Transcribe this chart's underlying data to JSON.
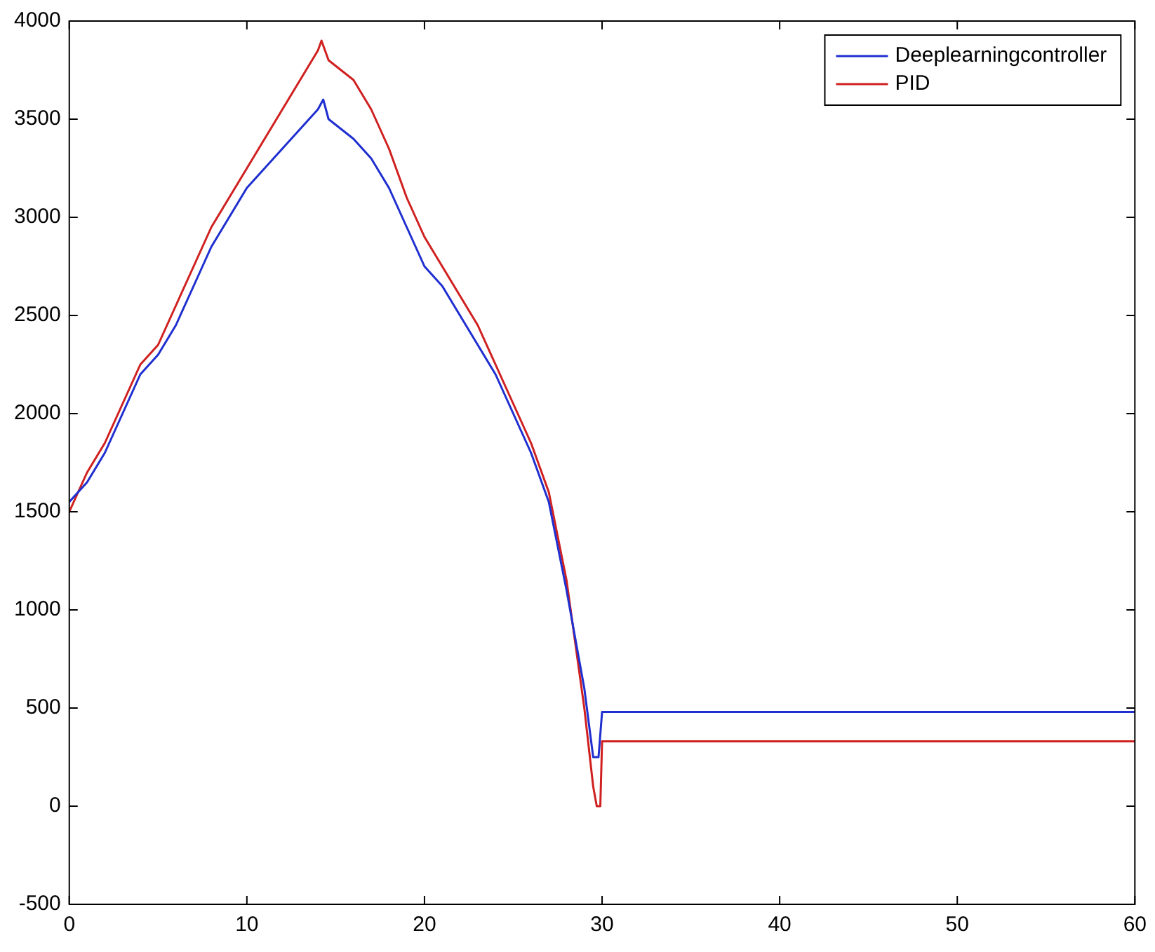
{
  "chart_data": {
    "type": "line",
    "xlim": [
      0,
      60
    ],
    "xticks": [
      0,
      10,
      20,
      30,
      40,
      50,
      60
    ],
    "ylim": [
      -500,
      4000
    ],
    "yticks": [
      -500,
      0,
      500,
      1000,
      1500,
      2000,
      2500,
      3000,
      3500,
      4000
    ],
    "grid": false,
    "legend": "top right",
    "marker": "none",
    "line_style": "solid",
    "series": [
      {
        "name": "Deeplearningcontroller",
        "color": "#1f2fd0",
        "x": [
          0,
          1,
          2,
          3,
          4,
          5,
          6,
          7,
          8,
          9,
          10,
          11,
          12,
          13,
          14,
          14.3,
          14.6,
          16,
          17,
          18,
          19,
          20,
          21,
          22,
          23,
          24,
          25,
          26,
          27,
          28,
          29,
          29.5,
          29.8,
          30,
          60
        ],
        "values": [
          1550,
          1650,
          1800,
          2000,
          2200,
          2300,
          2450,
          2650,
          2850,
          3000,
          3150,
          3250,
          3350,
          3450,
          3550,
          3600,
          3500,
          3400,
          3300,
          3150,
          2950,
          2750,
          2650,
          2500,
          2350,
          2200,
          2000,
          1800,
          1550,
          1100,
          600,
          250,
          250,
          480,
          480
        ]
      },
      {
        "name": "PID",
        "color": "#d02020",
        "x": [
          0,
          1,
          2,
          3,
          4,
          5,
          6,
          7,
          8,
          9,
          10,
          11,
          12,
          13,
          14,
          14.2,
          14.6,
          16,
          17,
          18,
          19,
          20,
          21,
          22,
          23,
          24,
          25,
          26,
          27,
          28,
          29,
          29.5,
          29.7,
          29.9,
          30,
          60
        ],
        "values": [
          1500,
          1700,
          1850,
          2050,
          2250,
          2350,
          2550,
          2750,
          2950,
          3100,
          3250,
          3400,
          3550,
          3700,
          3850,
          3900,
          3800,
          3700,
          3550,
          3350,
          3100,
          2900,
          2750,
          2600,
          2450,
          2250,
          2050,
          1850,
          1600,
          1150,
          500,
          100,
          0,
          0,
          330,
          330
        ]
      }
    ]
  }
}
